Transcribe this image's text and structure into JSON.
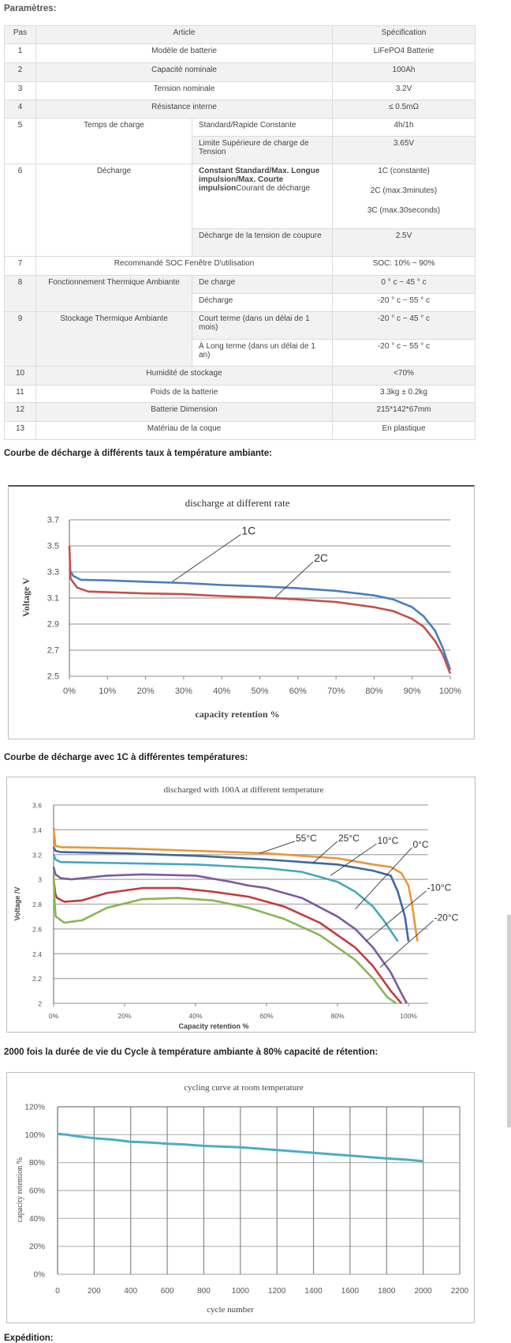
{
  "params_title": "Paramètres:",
  "table": {
    "headers": {
      "step": "Pas",
      "item": "Article",
      "spec": "Spécification"
    },
    "rows": [
      {
        "step": "1",
        "item": "Modèle de batterie",
        "spec": "LiFePO4 Batterie"
      },
      {
        "step": "2",
        "item": "Capacité nominale",
        "spec": "100Ah"
      },
      {
        "step": "3",
        "item": "Tension nominale",
        "spec": "3.2V"
      },
      {
        "step": "4",
        "item": "Résistance interne",
        "spec": "≤ 0.5mΩ"
      },
      {
        "step": "5",
        "item": "Temps de charge",
        "sub": [
          {
            "label": "Standard/Rapide Constante",
            "spec": "4h/1h"
          },
          {
            "label": "Limite Supérieure de charge de Tension",
            "spec": "3.65V"
          }
        ]
      },
      {
        "step": "6",
        "item": "Décharge",
        "sub": [
          {
            "label_bold": "Constant Standard/Max. Longue impulsion/Max. Courte impulsion",
            "label": "Courant de décharge",
            "spec": [
              "1C (constante)",
              "2C (max.3minutes)",
              "3C (max.30seconds)"
            ]
          },
          {
            "label": "Décharge de la tension de coupure",
            "spec": "2.5V"
          }
        ]
      },
      {
        "step": "7",
        "item": "Recommandé SOC Fenêtre D'utilisation",
        "spec": "SOC: 10% ~ 90%"
      },
      {
        "step": "8",
        "item": "Fonctionnement Thermique Ambiante",
        "sub": [
          {
            "label": "De charge",
            "spec": "0 ° c ~ 45 ° c"
          },
          {
            "label": "Décharge",
            "spec": "-20 ° c ~ 55 ° c"
          }
        ]
      },
      {
        "step": "9",
        "item": "Stockage Thermique Ambiante",
        "sub": [
          {
            "label": "Court terme (dans un délai de 1 mois)",
            "spec": "-20 ° c ~ 45 ° c"
          },
          {
            "label": "À Long terme (dans un délai de 1 an)",
            "spec": "-20 ° c ~ 55 ° c"
          }
        ]
      },
      {
        "step": "10",
        "item": "Humidité de stockage",
        "spec": "<70%"
      },
      {
        "step": "11",
        "item": "Poids de la batterie",
        "spec": "3.3kg ± 0.2kg"
      },
      {
        "step": "12",
        "item": "Batterie Dimension",
        "spec": "215*142*67mm"
      },
      {
        "step": "13",
        "item": "Matériau de la coque",
        "spec": "En plastique"
      }
    ]
  },
  "headings": {
    "rate": "Courbe de décharge à différents taux à température ambiante:",
    "temperature": "Courbe de décharge avec 1C à différentes températures:",
    "cycle": "2000 fois la durée de vie du Cycle à température ambiante à 80% capacité de rétention:",
    "shipping": "Expédition:"
  },
  "chart_data": [
    {
      "type": "line",
      "title": "discharge at different rate",
      "xlabel": "capacity retention  %",
      "ylabel": "Voltage  V",
      "xlim": [
        0,
        100
      ],
      "ylim": [
        2.5,
        3.7
      ],
      "x_ticks": [
        0,
        10,
        20,
        30,
        40,
        50,
        60,
        70,
        80,
        90,
        100
      ],
      "x_tick_labels": [
        "0%",
        "10%",
        "20%",
        "30%",
        "40%",
        "50%",
        "60%",
        "70%",
        "80%",
        "90%",
        "100%"
      ],
      "y_ticks": [
        2.5,
        2.7,
        2.9,
        3.1,
        3.3,
        3.5,
        3.7
      ],
      "y_tick_labels": [
        "2.5",
        "2.7",
        "2.9",
        "3.1",
        "3.3",
        "3.5",
        "3.7"
      ],
      "grid": "horizontal",
      "series": [
        {
          "name": "1C",
          "color": "#4a7ebb",
          "x": [
            0,
            1,
            3,
            10,
            20,
            30,
            40,
            50,
            60,
            70,
            80,
            85,
            90,
            93,
            96,
            98,
            100
          ],
          "y": [
            3.32,
            3.27,
            3.24,
            3.235,
            3.225,
            3.215,
            3.2,
            3.19,
            3.175,
            3.155,
            3.12,
            3.09,
            3.03,
            2.96,
            2.85,
            2.72,
            2.55
          ]
        },
        {
          "name": "2C",
          "color": "#c0504d",
          "x": [
            0,
            0.3,
            2,
            5,
            10,
            20,
            30,
            40,
            50,
            60,
            70,
            80,
            85,
            90,
            93,
            96,
            98,
            100
          ],
          "y": [
            3.5,
            3.25,
            3.18,
            3.15,
            3.145,
            3.135,
            3.13,
            3.115,
            3.105,
            3.09,
            3.07,
            3.03,
            3.0,
            2.94,
            2.88,
            2.77,
            2.67,
            2.52
          ]
        }
      ],
      "annotations": [
        {
          "text": "1C",
          "at": [
            45,
            3.6
          ],
          "points_to": [
            27,
            3.225
          ]
        },
        {
          "text": "2C",
          "at": [
            64,
            3.39
          ],
          "points_to": [
            54,
            3.105
          ]
        }
      ]
    },
    {
      "type": "line",
      "title": "discharged with 100A at different temperature",
      "xlabel": "Capacity retention %",
      "ylabel": "Voltage /V",
      "xlim": [
        0,
        105
      ],
      "ylim": [
        2.0,
        3.6
      ],
      "x_ticks": [
        0,
        20,
        40,
        60,
        80,
        100
      ],
      "x_tick_labels": [
        "0%",
        "20%",
        "40%",
        "60%",
        "80%",
        "100%"
      ],
      "y_ticks": [
        2.0,
        2.2,
        2.4,
        2.6,
        2.8,
        3.0,
        3.2,
        3.4,
        3.6
      ],
      "y_tick_labels": [
        "2",
        "2.2",
        "2.4",
        "2.6",
        "2.8",
        "3",
        "3.2",
        "3.4",
        "3.6"
      ],
      "grid": "horizontal",
      "series": [
        {
          "name": "55°C",
          "color": "#e8973a",
          "x": [
            0,
            0.5,
            2,
            20,
            40,
            60,
            80,
            90,
            95,
            98,
            100,
            101,
            102.5
          ],
          "y": [
            3.42,
            3.27,
            3.26,
            3.25,
            3.23,
            3.21,
            3.17,
            3.12,
            3.1,
            3.05,
            2.95,
            2.8,
            2.5
          ]
        },
        {
          "name": "25°C",
          "color": "#3f67a3",
          "x": [
            0,
            0.5,
            2,
            20,
            40,
            60,
            80,
            90,
            95,
            97,
            99,
            100
          ],
          "y": [
            3.26,
            3.23,
            3.22,
            3.21,
            3.19,
            3.16,
            3.12,
            3.07,
            3.03,
            2.9,
            2.7,
            2.5
          ]
        },
        {
          "name": "10°C",
          "color": "#45a8bd",
          "x": [
            0,
            0.5,
            2,
            20,
            40,
            60,
            70,
            80,
            85,
            90,
            93,
            97
          ],
          "y": [
            3.2,
            3.16,
            3.14,
            3.13,
            3.12,
            3.09,
            3.06,
            2.98,
            2.9,
            2.78,
            2.67,
            2.5
          ]
        },
        {
          "name": "0°C",
          "color": "#7b5ba1",
          "x": [
            0,
            0.5,
            2,
            5,
            15,
            25,
            40,
            50,
            55,
            60,
            70,
            80,
            85,
            90,
            95,
            98,
            99.5
          ],
          "y": [
            3.1,
            3.04,
            3.01,
            3.0,
            3.03,
            3.04,
            3.03,
            2.98,
            2.95,
            2.93,
            2.85,
            2.7,
            2.6,
            2.45,
            2.25,
            2.08,
            2.0
          ]
        },
        {
          "name": "-10°C",
          "color": "#c23b3f",
          "x": [
            0,
            0.5,
            1,
            3,
            8,
            15,
            25,
            35,
            45,
            55,
            65,
            75,
            85,
            90,
            95,
            98
          ],
          "y": [
            3.0,
            2.88,
            2.85,
            2.82,
            2.83,
            2.89,
            2.93,
            2.93,
            2.9,
            2.86,
            2.78,
            2.65,
            2.45,
            2.3,
            2.1,
            2.0
          ]
        },
        {
          "name": "-20°C",
          "color": "#8bb553",
          "x": [
            0,
            0.3,
            0.6,
            3,
            8,
            15,
            25,
            35,
            45,
            55,
            65,
            75,
            85,
            90,
            94,
            96.5
          ],
          "y": [
            3.05,
            2.8,
            2.7,
            2.65,
            2.67,
            2.77,
            2.84,
            2.85,
            2.83,
            2.77,
            2.68,
            2.55,
            2.35,
            2.2,
            2.05,
            2.0
          ]
        }
      ],
      "annotations": [
        {
          "text": "55°C",
          "at": [
            68,
            3.32
          ],
          "points_to": [
            58,
            3.21
          ]
        },
        {
          "text": "25°C",
          "at": [
            80,
            3.32
          ],
          "points_to": [
            73,
            3.13
          ]
        },
        {
          "text": "10°C",
          "at": [
            91,
            3.3
          ],
          "points_to": [
            78,
            3.03
          ]
        },
        {
          "text": "0°C",
          "at": [
            101,
            3.27
          ],
          "points_to": [
            85,
            2.76
          ]
        },
        {
          "text": "-10°C",
          "at": [
            105,
            2.92
          ],
          "points_to": [
            88,
            2.5
          ]
        },
        {
          "text": "-20°C",
          "at": [
            107,
            2.68
          ],
          "points_to": [
            92,
            2.29
          ]
        }
      ]
    },
    {
      "type": "line",
      "title": "cycling curve at room temperature",
      "xlabel": "cycle number",
      "ylabel": "capacity retention %",
      "xlim": [
        0,
        2200
      ],
      "ylim": [
        0,
        120
      ],
      "x_ticks": [
        0,
        200,
        400,
        600,
        800,
        1000,
        1200,
        1400,
        1600,
        1800,
        2000,
        2200
      ],
      "x_tick_labels": [
        "0",
        "200",
        "400",
        "600",
        "800",
        "1000",
        "1200",
        "1400",
        "1600",
        "1800",
        "2000",
        "2200"
      ],
      "y_ticks": [
        0,
        20,
        40,
        60,
        80,
        100,
        120
      ],
      "y_tick_labels": [
        "0%",
        "20%",
        "40%",
        "60%",
        "80%",
        "100%",
        "120%"
      ],
      "grid": "both",
      "series": [
        {
          "name": "capacity retention",
          "color": "#4bacc6",
          "x": [
            0,
            50,
            100,
            200,
            300,
            400,
            500,
            600,
            700,
            800,
            900,
            1000,
            1100,
            1200,
            1300,
            1400,
            1500,
            1600,
            1700,
            1800,
            1900,
            2000
          ],
          "y": [
            100.5,
            100,
            99,
            97.5,
            96.5,
            95,
            94.5,
            93.5,
            93,
            92,
            91.5,
            91,
            90,
            89,
            88,
            87,
            86,
            85,
            84,
            83,
            82.2,
            81
          ]
        }
      ],
      "annotations": []
    }
  ]
}
